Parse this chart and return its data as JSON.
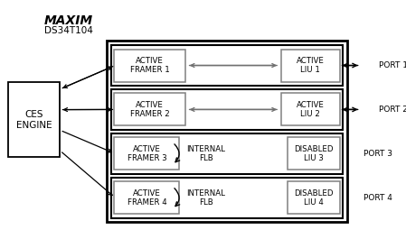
{
  "bg_color": "#ffffff",
  "title_maxim": "MAXIM",
  "title_ds": "DS34T104",
  "ces_label": "CES\nENGINE",
  "ports": [
    "PORT 1",
    "PORT 2",
    "PORT 3",
    "PORT 4"
  ],
  "framer_labels": [
    "ACTIVE\nFRAMER 1",
    "ACTIVE\nFRAMER 2",
    "ACTIVE\nFRAMER 3",
    "ACTIVE\nFRAMER 4"
  ],
  "liu_active_labels": [
    "ACTIVE\nLIU 1",
    "ACTIVE\nLIU 2"
  ],
  "liu_disabled_labels": [
    "DISABLED\nLIU 3",
    "DISABLED\nLIU 4"
  ],
  "flb_labels": [
    "INTERNAL\nFLB",
    "INTERNAL\nFLB"
  ],
  "fig_w": 4.49,
  "fig_h": 2.65,
  "dpi": 100
}
